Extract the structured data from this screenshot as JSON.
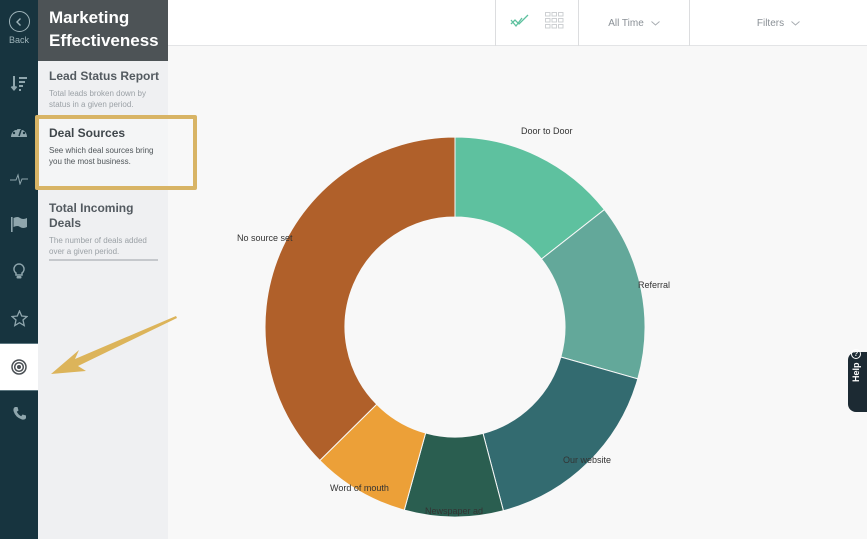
{
  "nav": {
    "back_label": "Back",
    "rail_items": [
      {
        "icon": "sort-descending-icon"
      },
      {
        "icon": "speedometer-icon"
      },
      {
        "icon": "pulse-icon"
      },
      {
        "icon": "flag-icon"
      },
      {
        "icon": "lightbulb-icon"
      },
      {
        "icon": "star-icon"
      },
      {
        "icon": "target-icon",
        "active": true
      },
      {
        "icon": "phone-icon"
      }
    ]
  },
  "panel": {
    "title_line1": "Marketing",
    "title_line2": "Effectiveness",
    "reports": [
      {
        "title": "Lead Status Report",
        "description": "Total leads broken down by status in a given period."
      },
      {
        "title": "Deal Sources",
        "description": "See which deal sources bring you the most business.",
        "selected": true
      },
      {
        "title": "Total Incoming Deals",
        "description": "The number of deals added over a given period."
      }
    ]
  },
  "toolbar": {
    "chart_view_icon": "line-chart-check-icon",
    "table_view_icon": "grid-icon",
    "time_range": "All Time",
    "filters": "Filters"
  },
  "help": {
    "label": "Help"
  },
  "colors": {
    "rail_bg": "#17343f",
    "panel_header_bg": "#4d5356",
    "highlight": "#d8b465",
    "door_to_door": "#5ec19f",
    "referral": "#63a89a",
    "our_website": "#336b70",
    "newspaper_ad": "#2a5e50",
    "word_of_mouth": "#eca038",
    "no_source_set": "#b0602a"
  },
  "chart_data": {
    "type": "pie",
    "variant": "donut",
    "title": "Deal Sources",
    "categories": [
      "Door to Door",
      "Referral",
      "Our website",
      "Newspaper ad",
      "Word of mouth",
      "No source set"
    ],
    "values": [
      14.4,
      15.0,
      16.5,
      8.4,
      8.3,
      37.4
    ],
    "unit": "percent (estimated from slice angles)",
    "colors": [
      "#5ec19f",
      "#63a89a",
      "#336b70",
      "#2a5e50",
      "#eca038",
      "#b0602a"
    ],
    "legend": "none (labels placed outside slices)"
  }
}
